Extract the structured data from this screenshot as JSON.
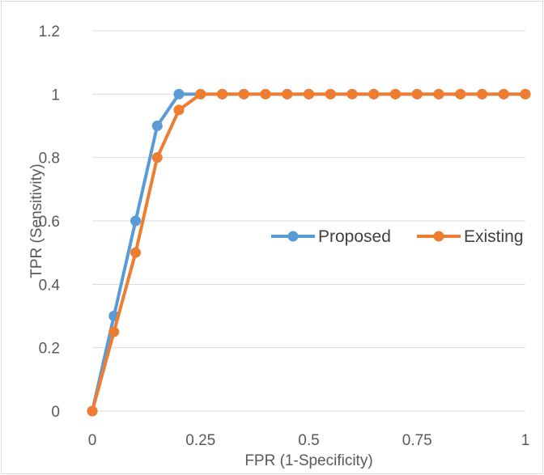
{
  "chart_data": {
    "type": "line",
    "title": "",
    "xlabel": "FPR (1-Specificity)",
    "ylabel": "TPR (Sensitivity)",
    "xlim": [
      0,
      1
    ],
    "ylim": [
      0,
      1.2
    ],
    "x_ticks": [
      "0",
      "0.25",
      "0.5",
      "0.75",
      "1"
    ],
    "y_ticks": [
      "0",
      "0.2",
      "0.4",
      "0.6",
      "0.8",
      "1",
      "1.2"
    ],
    "grid": true,
    "legend_position": "right",
    "series": [
      {
        "name": "Proposed",
        "color": "#5b9bd5",
        "x": [
          0,
          0.05,
          0.1,
          0.15,
          0.2,
          0.25,
          0.3,
          0.35,
          0.4,
          0.45,
          0.5,
          0.55,
          0.6,
          0.65,
          0.7,
          0.75,
          0.8,
          0.85,
          0.9,
          0.95,
          1
        ],
        "y": [
          0,
          0.3,
          0.6,
          0.9,
          1,
          1,
          1,
          1,
          1,
          1,
          1,
          1,
          1,
          1,
          1,
          1,
          1,
          1,
          1,
          1,
          1
        ]
      },
      {
        "name": "Existing",
        "color": "#ed7d31",
        "x": [
          0,
          0.05,
          0.1,
          0.15,
          0.2,
          0.25,
          0.3,
          0.35,
          0.4,
          0.45,
          0.5,
          0.55,
          0.6,
          0.65,
          0.7,
          0.75,
          0.8,
          0.85,
          0.9,
          0.95,
          1
        ],
        "y": [
          0,
          0.25,
          0.5,
          0.8,
          0.95,
          1,
          1,
          1,
          1,
          1,
          1,
          1,
          1,
          1,
          1,
          1,
          1,
          1,
          1,
          1,
          1
        ]
      }
    ]
  }
}
